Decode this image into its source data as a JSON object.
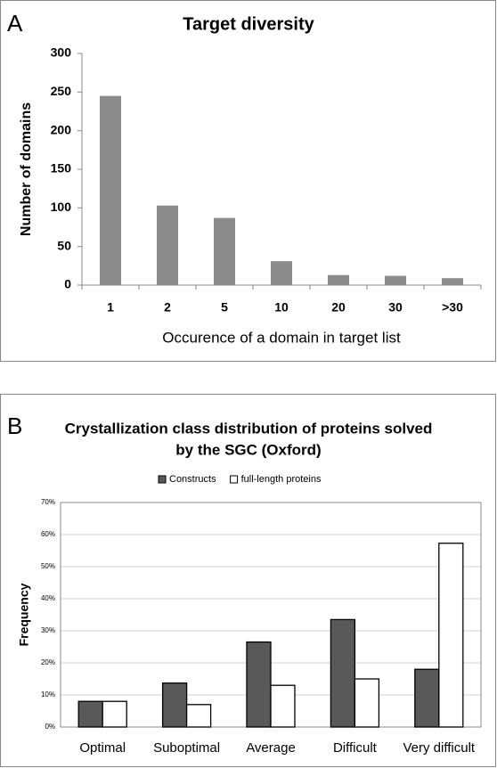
{
  "chart_data": [
    {
      "type": "bar",
      "panel": "A",
      "title": [
        "Target diversity"
      ],
      "x_label": "Occurence of a domain in target list",
      "y_label": "Number of domains",
      "categories": [
        "1",
        "2",
        "5",
        "10",
        "20",
        "30",
        ">30"
      ],
      "values": [
        245,
        103,
        87,
        31,
        13,
        12,
        9
      ],
      "color": "#8c8c8c",
      "ylim": [
        0,
        300
      ],
      "yticks": [
        0,
        50,
        100,
        150,
        200,
        250,
        300
      ],
      "grid": false
    },
    {
      "type": "bar",
      "panel": "B",
      "title": [
        "Crystallization class distribution of proteins solved",
        "by the SGC (Oxford)"
      ],
      "y_label": "Frequency",
      "categories": [
        "Optimal",
        "Suboptimal",
        "Average",
        "Difficult",
        "Very difficult"
      ],
      "series": [
        {
          "name": "Constructs",
          "color": "#595959",
          "values": [
            8,
            13.7,
            26.5,
            33.5,
            18
          ]
        },
        {
          "name": "full-length proteins",
          "color": "#ffffff",
          "values": [
            8,
            7,
            13,
            15,
            57.3
          ]
        }
      ],
      "ylim": [
        0,
        70
      ],
      "yticks": [
        {
          "value": 0,
          "label": "0%"
        },
        {
          "value": 10,
          "label": "10%"
        },
        {
          "value": 20,
          "label": "20%"
        },
        {
          "value": 30,
          "label": "30%"
        },
        {
          "value": 40,
          "label": "40%"
        },
        {
          "value": 50,
          "label": "50%"
        },
        {
          "value": 60,
          "label": "60%"
        },
        {
          "value": 70,
          "label": "70%"
        }
      ],
      "grid": true,
      "legend": "top"
    }
  ]
}
